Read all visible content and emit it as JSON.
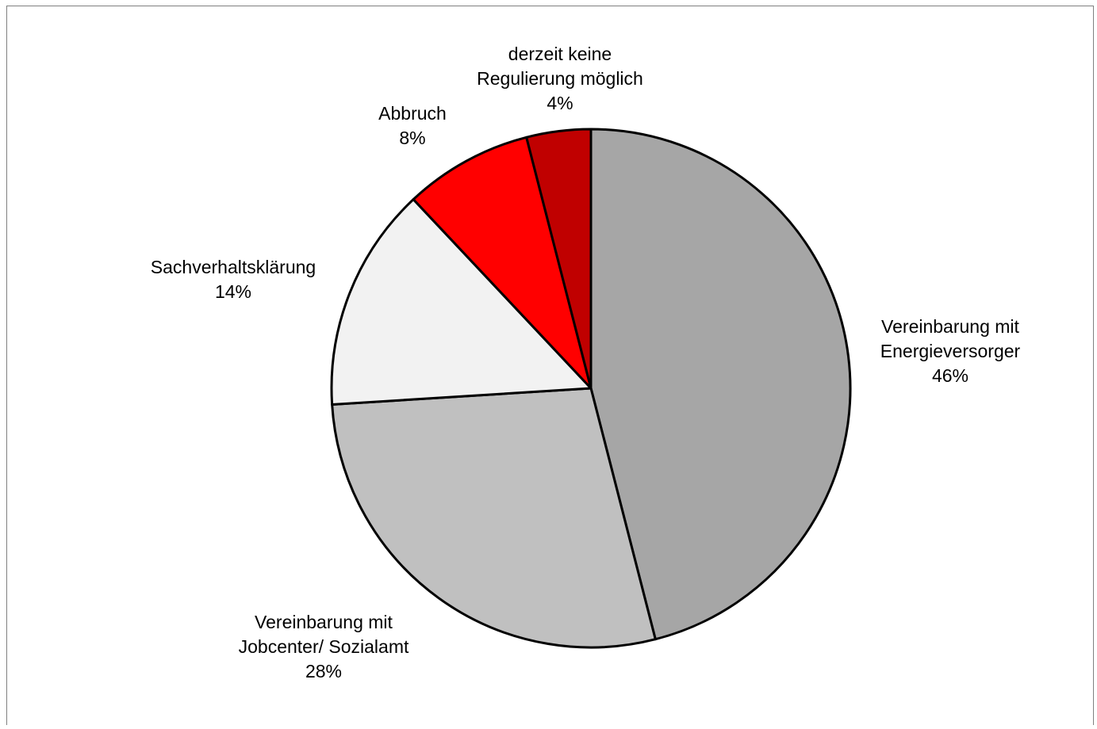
{
  "chart_data": {
    "type": "pie",
    "title": "",
    "start_angle_deg": 0,
    "direction": "clockwise",
    "slices": [
      {
        "label_lines": [
          "Vereinbarung mit",
          "Energieversorger"
        ],
        "value_label": "46%",
        "value": 46,
        "color": "#a6a6a6"
      },
      {
        "label_lines": [
          "Vereinbarung mit",
          "Jobcenter/ Sozialamt"
        ],
        "value_label": "28%",
        "value": 28,
        "color": "#c0c0c0"
      },
      {
        "label_lines": [
          "Sachverhaltsklärung"
        ],
        "value_label": "14%",
        "value": 14,
        "color": "#f2f2f2"
      },
      {
        "label_lines": [
          "Abbruch"
        ],
        "value_label": "8%",
        "value": 8,
        "color": "#ff0000"
      },
      {
        "label_lines": [
          "derzeit keine",
          "Regulierung möglich"
        ],
        "value_label": "4%",
        "value": 4,
        "color": "#c00000"
      }
    ],
    "border_color": "#000000",
    "grid": false,
    "legend": "none"
  }
}
